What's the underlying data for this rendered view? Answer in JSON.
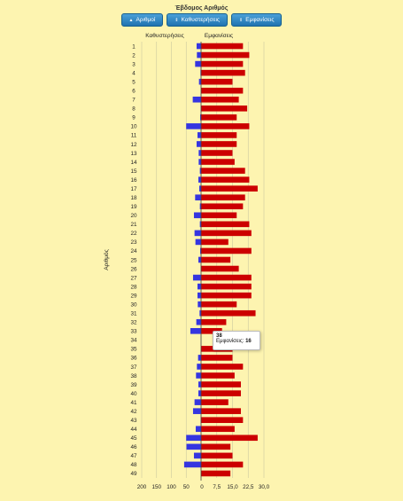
{
  "title": "Έβδομος Αριθμός",
  "buttons": [
    {
      "label": "Αριθμοί",
      "icon": "▲"
    },
    {
      "label": "Καθυστερήσεις",
      "icon": "⇕"
    },
    {
      "label": "Εμφανίσεις",
      "icon": "⇕"
    }
  ],
  "tooltip": {
    "number": "38",
    "label": "Εμφανίσεις:",
    "value": "16"
  },
  "chart_data": [
    {
      "type": "bar",
      "orientation": "horizontal",
      "title": "Καθυστερήσεις",
      "ylabel": "Αριθμός",
      "xlim": [
        0,
        200
      ],
      "x_reversed": true,
      "x_ticks": [
        "200",
        "150",
        "100",
        "50",
        "0"
      ],
      "color": "#3535e0",
      "categories": [
        "1",
        "2",
        "3",
        "4",
        "5",
        "6",
        "7",
        "8",
        "9",
        "10",
        "11",
        "12",
        "13",
        "14",
        "15",
        "16",
        "17",
        "18",
        "19",
        "20",
        "21",
        "22",
        "23",
        "24",
        "25",
        "26",
        "27",
        "28",
        "29",
        "30",
        "31",
        "32",
        "33",
        "34",
        "35",
        "36",
        "37",
        "38",
        "39",
        "40",
        "41",
        "42",
        "43",
        "44",
        "45",
        "46",
        "47",
        "48",
        "49"
      ],
      "values": [
        15,
        14,
        20,
        2,
        7,
        0,
        28,
        1,
        3,
        50,
        12,
        15,
        8,
        8,
        4,
        9,
        6,
        20,
        4,
        24,
        4,
        22,
        19,
        3,
        9,
        1,
        27,
        12,
        12,
        11,
        5,
        16,
        36,
        0,
        0,
        10,
        14,
        17,
        9,
        9,
        22,
        27,
        1,
        18,
        50,
        49,
        24,
        57,
        0
      ]
    },
    {
      "type": "bar",
      "orientation": "horizontal",
      "title": "Εμφανίσεις",
      "xlim": [
        0,
        30
      ],
      "x_ticks": [
        "0",
        "7,5",
        "15,0",
        "22,5",
        "30,0"
      ],
      "color": "#cc0000",
      "categories": [
        "1",
        "2",
        "3",
        "4",
        "5",
        "6",
        "7",
        "8",
        "9",
        "10",
        "11",
        "12",
        "13",
        "14",
        "15",
        "16",
        "17",
        "18",
        "19",
        "20",
        "21",
        "22",
        "23",
        "24",
        "25",
        "26",
        "27",
        "28",
        "29",
        "30",
        "31",
        "32",
        "33",
        "34",
        "35",
        "36",
        "37",
        "38",
        "39",
        "40",
        "41",
        "42",
        "43",
        "44",
        "45",
        "46",
        "47",
        "48",
        "49"
      ],
      "values": [
        20,
        23,
        20,
        21,
        15,
        20,
        18,
        22,
        17,
        23,
        17,
        17,
        15,
        16,
        21,
        23,
        27,
        21,
        20,
        17,
        23,
        24,
        13,
        24,
        14,
        18,
        24,
        24,
        24,
        17,
        26,
        12,
        10,
        0,
        15,
        15,
        20,
        16,
        19,
        19,
        13,
        19,
        20,
        16,
        27,
        14,
        15,
        20,
        14
      ]
    }
  ]
}
